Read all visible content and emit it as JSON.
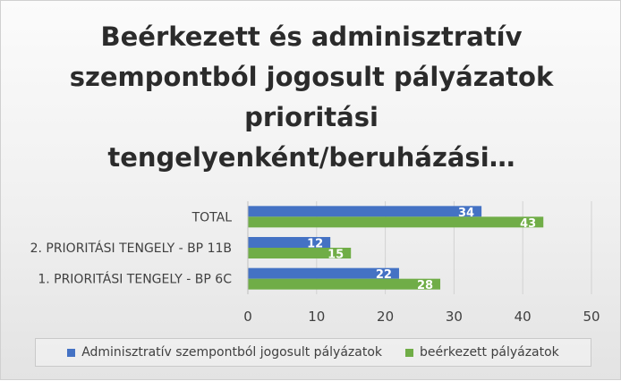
{
  "chart_data": {
    "type": "bar",
    "orientation": "horizontal",
    "title": "Beérkezett és adminisztratív szempontból jogosult pályázatok prioritási tengelyenként/beruházási…",
    "title_lines": [
      "Beérkezett és adminisztratív",
      "szempontból jogosult pályázatok",
      "prioritási",
      "tengelyenként/beruházási…"
    ],
    "categories": [
      "TOTAL",
      "2. PRIORITÁSI TENGELY - BP 11B",
      "1. PRIORITÁSI TENGELY - BP 6C"
    ],
    "series": [
      {
        "name": "Adminisztratív szempontból jogosult pályázatok",
        "values": [
          34,
          12,
          22
        ],
        "color": "#4472c4"
      },
      {
        "name": "beérkezett pályázatok",
        "values": [
          43,
          15,
          28
        ],
        "color": "#70ad47"
      }
    ],
    "xlim": [
      0,
      50
    ],
    "xticks": [
      "0",
      "10",
      "20",
      "30",
      "40",
      "50"
    ],
    "grid": true,
    "data_labels": true,
    "legend_position": "bottom"
  }
}
